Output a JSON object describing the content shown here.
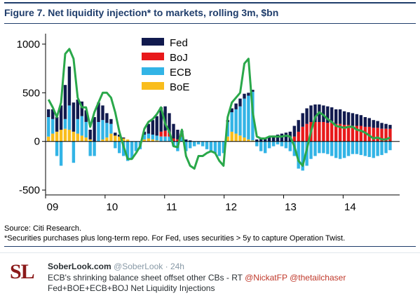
{
  "figure": {
    "title": "Figure 7. Net liquidity injection* to markets, rolling 3m, $bn",
    "source": "Source: Citi Research.",
    "footnote": "*Securities purchases plus long-term repo. For Fed, uses securities > 5y to capture Operation Twist."
  },
  "colors": {
    "Fed": "#111a4e",
    "BoJ": "#e8191b",
    "ECB": "#32b4e6",
    "BoE": "#f9bd1c",
    "total": "#2aa84a",
    "frame": "#1f3d6b"
  },
  "chart_data": {
    "type": "bar",
    "stacked": true,
    "ylim": [
      -550,
      1050
    ],
    "yticks": [
      1000,
      500,
      0,
      -500
    ],
    "ytick_labels": [
      "1000",
      "500",
      "0",
      "-500"
    ],
    "xlim": [
      2009.0,
      2014.95
    ],
    "xticks": [
      2009,
      2010,
      2011,
      2012,
      2013,
      2014
    ],
    "xtick_labels": [
      "09",
      "10",
      "11",
      "12",
      "13",
      "14"
    ],
    "legend": [
      "Fed",
      "BoJ",
      "ECB",
      "BoE"
    ],
    "legend_position": "top-center",
    "grid": false,
    "x": [
      2009.05,
      2009.12,
      2009.19,
      2009.26,
      2009.33,
      2009.4,
      2009.47,
      2009.54,
      2009.61,
      2009.68,
      2009.75,
      2009.82,
      2009.89,
      2009.96,
      2010.03,
      2010.1,
      2010.17,
      2010.24,
      2010.31,
      2010.38,
      2010.45,
      2010.52,
      2010.59,
      2010.66,
      2010.73,
      2010.8,
      2010.87,
      2010.94,
      2011.01,
      2011.08,
      2011.15,
      2011.22,
      2011.29,
      2011.36,
      2011.43,
      2011.5,
      2011.57,
      2011.64,
      2011.71,
      2011.78,
      2011.85,
      2011.92,
      2011.99,
      2012.06,
      2012.13,
      2012.2,
      2012.27,
      2012.34,
      2012.41,
      2012.48,
      2012.55,
      2012.62,
      2012.69,
      2012.76,
      2012.83,
      2012.9,
      2012.97,
      2013.04,
      2013.11,
      2013.18,
      2013.25,
      2013.32,
      2013.39,
      2013.46,
      2013.53,
      2013.6,
      2013.67,
      2013.74,
      2013.81,
      2013.88,
      2013.95,
      2014.02,
      2014.09,
      2014.16,
      2014.23,
      2014.3,
      2014.37,
      2014.44,
      2014.51,
      2014.58,
      2014.65,
      2014.72,
      2014.79
    ],
    "series": [
      {
        "name": "Fed",
        "values": [
          80,
          100,
          150,
          250,
          350,
          400,
          300,
          200,
          150,
          120,
          100,
          250,
          200,
          150,
          100,
          50,
          30,
          20,
          10,
          0,
          0,
          0,
          0,
          30,
          100,
          150,
          200,
          250,
          250,
          200,
          150,
          100,
          50,
          20,
          10,
          0,
          0,
          0,
          0,
          0,
          0,
          0,
          0,
          20,
          40,
          60,
          80,
          50,
          30,
          20,
          20,
          30,
          40,
          50,
          60,
          70,
          80,
          90,
          100,
          110,
          120,
          140,
          160,
          170,
          180,
          180,
          170,
          170,
          160,
          150,
          150,
          140,
          130,
          130,
          120,
          110,
          100,
          90,
          80,
          70,
          60,
          50,
          40
        ]
      },
      {
        "name": "BoJ",
        "values": [
          0,
          0,
          0,
          0,
          0,
          0,
          0,
          0,
          0,
          0,
          0,
          0,
          0,
          0,
          0,
          0,
          0,
          0,
          0,
          0,
          0,
          0,
          0,
          0,
          0,
          0,
          0,
          50,
          60,
          40,
          30,
          20,
          10,
          0,
          0,
          0,
          0,
          0,
          0,
          0,
          0,
          0,
          0,
          0,
          0,
          0,
          0,
          0,
          0,
          0,
          0,
          0,
          0,
          0,
          0,
          0,
          0,
          0,
          0,
          50,
          100,
          150,
          180,
          200,
          200,
          200,
          200,
          190,
          190,
          180,
          180,
          170,
          170,
          160,
          160,
          160,
          150,
          150,
          140,
          140,
          130,
          130,
          130
        ]
      },
      {
        "name": "ECB",
        "values": [
          200,
          150,
          -150,
          -250,
          100,
          250,
          -220,
          150,
          200,
          160,
          -150,
          -150,
          200,
          200,
          150,
          100,
          -70,
          -120,
          -150,
          -200,
          -180,
          -100,
          -80,
          50,
          50,
          50,
          50,
          50,
          50,
          50,
          -50,
          -100,
          50,
          -100,
          -70,
          -50,
          -30,
          -50,
          -80,
          -100,
          -120,
          -150,
          -120,
          150,
          200,
          250,
          300,
          400,
          450,
          500,
          -50,
          -100,
          -120,
          -70,
          -50,
          -30,
          -50,
          -70,
          -100,
          -150,
          -280,
          -300,
          -250,
          -180,
          -150,
          -120,
          -120,
          -130,
          -150,
          -170,
          -180,
          -170,
          -150,
          -130,
          -130,
          -140,
          -150,
          -160,
          -170,
          -150,
          -140,
          -120,
          -90
        ]
      },
      {
        "name": "BoE",
        "values": [
          50,
          80,
          100,
          120,
          130,
          120,
          100,
          80,
          60,
          40,
          20,
          0,
          0,
          20,
          40,
          80,
          60,
          50,
          30,
          20,
          0,
          0,
          0,
          20,
          30,
          20,
          10,
          0,
          0,
          0,
          0,
          0,
          0,
          0,
          0,
          0,
          0,
          0,
          0,
          0,
          0,
          0,
          0,
          50,
          100,
          80,
          60,
          40,
          20,
          10,
          0,
          0,
          0,
          0,
          0,
          0,
          0,
          0,
          0,
          0,
          0,
          0,
          0,
          0,
          0,
          0,
          0,
          0,
          0,
          0,
          0,
          0,
          0,
          0,
          0,
          0,
          0,
          0,
          0,
          0,
          0,
          0,
          0
        ]
      },
      {
        "name": "total",
        "values": [
          430,
          350,
          250,
          400,
          900,
          950,
          850,
          450,
          350,
          350,
          150,
          300,
          400,
          500,
          500,
          450,
          300,
          100,
          -50,
          -180,
          -180,
          -120,
          -50,
          130,
          200,
          230,
          280,
          350,
          180,
          100,
          -50,
          -60,
          120,
          -150,
          -250,
          -280,
          -150,
          -150,
          -120,
          -100,
          -120,
          -200,
          -250,
          250,
          400,
          450,
          500,
          800,
          850,
          300,
          50,
          30,
          30,
          50,
          50,
          50,
          50,
          60,
          50,
          -50,
          -200,
          -250,
          -80,
          100,
          250,
          300,
          270,
          230,
          200,
          160,
          150,
          140,
          150,
          150,
          120,
          110,
          90,
          60,
          30,
          40,
          20,
          20,
          40
        ]
      }
    ]
  },
  "tweet": {
    "avatar_text": "SL",
    "name": "SoberLook.com",
    "handle": "@SoberLook",
    "separator": "·",
    "time": "24h",
    "text_line1_prefix": "ECB's shrinking balance sheet offset other CBs - RT ",
    "mention1": "@NickatFP",
    "mention2": "@thetailchaser",
    "text_line2": "Fed+BOE+ECB+BOJ Net Liquidity Injections"
  }
}
